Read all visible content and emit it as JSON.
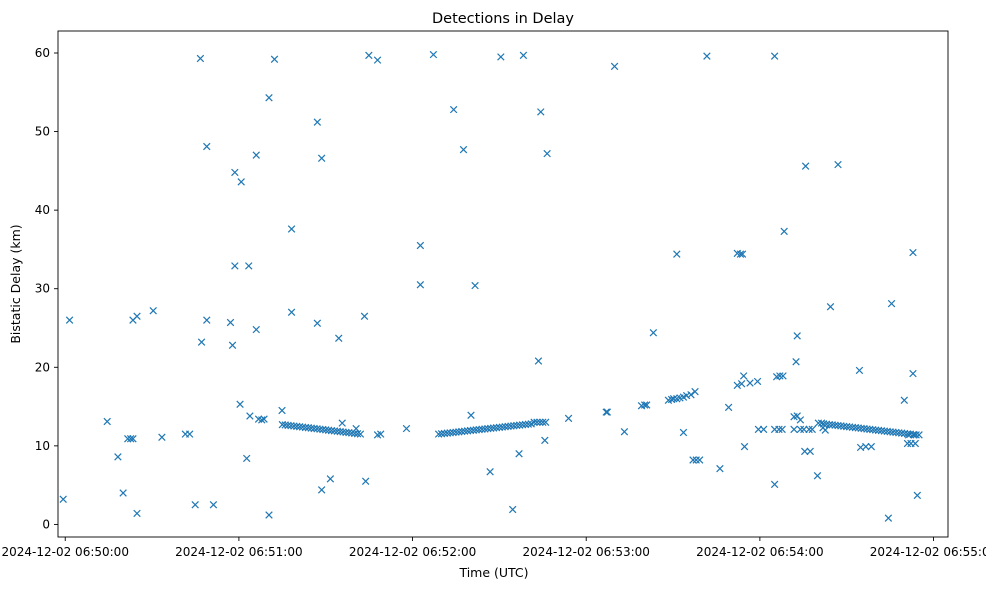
{
  "chart_data": {
    "type": "scatter",
    "title": "Detections in Delay",
    "xlabel": "Time (UTC)",
    "ylabel": "Bistatic Delay (km)",
    "x_units": "seconds after 2024-12-02 06:50:00",
    "xlim": [
      -2.5,
      305
    ],
    "ylim": [
      -1.6,
      62.8
    ],
    "x_ticks": [
      {
        "value": 0,
        "label": "2024-12-02 06:50:00"
      },
      {
        "value": 60,
        "label": "2024-12-02 06:51:00"
      },
      {
        "value": 120,
        "label": "2024-12-02 06:52:00"
      },
      {
        "value": 180,
        "label": "2024-12-02 06:53:00"
      },
      {
        "value": 240,
        "label": "2024-12-02 06:54:00"
      },
      {
        "value": 300,
        "label": "2024-12-02 06:55:00"
      }
    ],
    "y_ticks": [
      {
        "value": 0,
        "label": "0"
      },
      {
        "value": 10,
        "label": "10"
      },
      {
        "value": 20,
        "label": "20"
      },
      {
        "value": 30,
        "label": "30"
      },
      {
        "value": 40,
        "label": "40"
      },
      {
        "value": 50,
        "label": "50"
      },
      {
        "value": 60,
        "label": "60"
      }
    ],
    "grid": false,
    "marker": "x",
    "color": "#1f77b4",
    "points": [
      [
        -0.7,
        3.2
      ],
      [
        1.5,
        26.0
      ],
      [
        14.5,
        13.1
      ],
      [
        18.2,
        8.6
      ],
      [
        20,
        4.0
      ],
      [
        21.6,
        10.9
      ],
      [
        22.6,
        10.9
      ],
      [
        23.4,
        10.9
      ],
      [
        23.4,
        26.0
      ],
      [
        24.8,
        26.5
      ],
      [
        24.8,
        1.4
      ],
      [
        30.4,
        27.2
      ],
      [
        33.4,
        11.1
      ],
      [
        41.5,
        11.5
      ],
      [
        43,
        11.5
      ],
      [
        44.9,
        2.5
      ],
      [
        46.7,
        59.3
      ],
      [
        47.1,
        23.2
      ],
      [
        48.9,
        48.1
      ],
      [
        48.9,
        26.0
      ],
      [
        51.2,
        2.5
      ],
      [
        57.1,
        25.7
      ],
      [
        57.8,
        22.8
      ],
      [
        58.6,
        44.8
      ],
      [
        58.6,
        32.9
      ],
      [
        60.4,
        15.3
      ],
      [
        60.8,
        43.6
      ],
      [
        62.7,
        8.4
      ],
      [
        63.4,
        32.9
      ],
      [
        63.8,
        13.8
      ],
      [
        66,
        47.0
      ],
      [
        66,
        24.8
      ],
      [
        66.8,
        13.4
      ],
      [
        67.9,
        13.3
      ],
      [
        68.7,
        13.4
      ],
      [
        70.4,
        54.3
      ],
      [
        70.4,
        1.2
      ],
      [
        72.3,
        59.2
      ],
      [
        74.9,
        14.5
      ],
      [
        78.2,
        37.6
      ],
      [
        78.2,
        27.0
      ],
      [
        87.1,
        51.2
      ],
      [
        88.6,
        46.6
      ],
      [
        87.1,
        25.6
      ],
      [
        88.6,
        4.4
      ],
      [
        91.6,
        5.8
      ],
      [
        94.5,
        23.7
      ],
      [
        95.7,
        12.9
      ],
      [
        100.5,
        12.2
      ],
      [
        103.4,
        26.5
      ],
      [
        103.8,
        5.5
      ],
      [
        104.9,
        59.7
      ],
      [
        107.9,
        59.1
      ],
      [
        107.9,
        11.4
      ],
      [
        109,
        11.5
      ],
      [
        117.9,
        12.2
      ],
      [
        122.7,
        35.5
      ],
      [
        122.7,
        30.5
      ],
      [
        127.2,
        59.8
      ],
      [
        134.2,
        52.8
      ],
      [
        137.6,
        47.7
      ],
      [
        140.2,
        13.9
      ],
      [
        141.6,
        30.4
      ],
      [
        146.8,
        6.7
      ],
      [
        150.5,
        59.5
      ],
      [
        154.6,
        1.9
      ],
      [
        156.8,
        9.0
      ],
      [
        158.3,
        59.7
      ],
      [
        163.5,
        20.8
      ],
      [
        164.3,
        52.5
      ],
      [
        165.7,
        10.7
      ],
      [
        166.5,
        47.2
      ],
      [
        173.9,
        13.5
      ],
      [
        186.9,
        14.3
      ],
      [
        187.3,
        14.3
      ],
      [
        189.8,
        58.3
      ],
      [
        193.2,
        11.8
      ],
      [
        203.2,
        24.4
      ],
      [
        211.3,
        34.4
      ],
      [
        213.6,
        11.7
      ],
      [
        216.9,
        8.2
      ],
      [
        218,
        8.2
      ],
      [
        219.2,
        8.2
      ],
      [
        221.7,
        59.6
      ],
      [
        226.2,
        7.1
      ],
      [
        229.2,
        14.9
      ],
      [
        232.2,
        34.5
      ],
      [
        233.3,
        34.4
      ],
      [
        234,
        34.4
      ],
      [
        232.2,
        17.7
      ],
      [
        233.7,
        17.9
      ],
      [
        234.4,
        18.9
      ],
      [
        236.6,
        18.0
      ],
      [
        239.2,
        18.2
      ],
      [
        234.7,
        9.9
      ],
      [
        245.1,
        59.6
      ],
      [
        245.1,
        5.1
      ],
      [
        245.8,
        18.8
      ],
      [
        246.9,
        18.9
      ],
      [
        248,
        18.9
      ],
      [
        248.4,
        37.3
      ],
      [
        251.8,
        13.7
      ],
      [
        252.9,
        13.8
      ],
      [
        252.5,
        20.7
      ],
      [
        252.9,
        24.0
      ],
      [
        254,
        13.3
      ],
      [
        255.5,
        9.3
      ],
      [
        257.4,
        9.3
      ],
      [
        255.8,
        45.6
      ],
      [
        259.9,
        6.2
      ],
      [
        264.4,
        27.7
      ],
      [
        267,
        45.8
      ],
      [
        274.4,
        19.6
      ],
      [
        274.8,
        9.8
      ],
      [
        276.6,
        9.9
      ],
      [
        278.5,
        9.9
      ],
      [
        284.4,
        0.8
      ],
      [
        285.5,
        28.1
      ],
      [
        289.9,
        15.8
      ],
      [
        291,
        10.3
      ],
      [
        292.2,
        10.3
      ],
      [
        293.7,
        10.3
      ],
      [
        292.9,
        34.6
      ],
      [
        292.9,
        19.2
      ],
      [
        294.4,
        3.7
      ],
      [
        291.4,
        11.4
      ],
      [
        293.3,
        11.4
      ],
      [
        295,
        11.4
      ],
      [
        239.5,
        12.1
      ],
      [
        241.3,
        12.1
      ],
      [
        245.1,
        12.1
      ],
      [
        246.6,
        12.1
      ],
      [
        247.7,
        12.1
      ],
      [
        251.8,
        12.1
      ],
      [
        254.0,
        12.1
      ],
      [
        255.2,
        12.1
      ],
      [
        257.0,
        12.1
      ],
      [
        258.1,
        12.1
      ],
      [
        260.2,
        12.9
      ],
      [
        261.3,
        12.9
      ],
      [
        261.8,
        12.3
      ],
      [
        262.6,
        12.0
      ],
      [
        199.1,
        15.1
      ],
      [
        200.2,
        15.2
      ],
      [
        200.9,
        15.2
      ],
      [
        208.4,
        15.8
      ],
      [
        209.5,
        15.9
      ],
      [
        210.2,
        16.0
      ],
      [
        211.3,
        16.0
      ],
      [
        212.4,
        16.1
      ],
      [
        213.6,
        16.2
      ],
      [
        214.7,
        16.4
      ],
      [
        216.2,
        16.5
      ],
      [
        217.6,
        16.9
      ],
      [
        75,
        12.7
      ],
      [
        76,
        12.66
      ],
      [
        77,
        12.61
      ],
      [
        78,
        12.57
      ],
      [
        79,
        12.52
      ],
      [
        80,
        12.48
      ],
      [
        81,
        12.43
      ],
      [
        82,
        12.39
      ],
      [
        83,
        12.34
      ],
      [
        84,
        12.3
      ],
      [
        85,
        12.26
      ],
      [
        86,
        12.21
      ],
      [
        87,
        12.17
      ],
      [
        88,
        12.12
      ],
      [
        89,
        12.08
      ],
      [
        90,
        12.03
      ],
      [
        91,
        11.99
      ],
      [
        92,
        11.94
      ],
      [
        93,
        11.9
      ],
      [
        94,
        11.86
      ],
      [
        95,
        11.81
      ],
      [
        96,
        11.77
      ],
      [
        97,
        11.72
      ],
      [
        98,
        11.68
      ],
      [
        99,
        11.63
      ],
      [
        100,
        11.59
      ],
      [
        101,
        11.54
      ],
      [
        102,
        11.5
      ],
      [
        129,
        11.5
      ],
      [
        130,
        11.54
      ],
      [
        131,
        11.58
      ],
      [
        132,
        11.62
      ],
      [
        133,
        11.66
      ],
      [
        134,
        11.7
      ],
      [
        135,
        11.74
      ],
      [
        136,
        11.78
      ],
      [
        137,
        11.83
      ],
      [
        138,
        11.87
      ],
      [
        139,
        11.91
      ],
      [
        140,
        11.95
      ],
      [
        141,
        11.99
      ],
      [
        142,
        12.03
      ],
      [
        143,
        12.07
      ],
      [
        144,
        12.11
      ],
      [
        145,
        12.15
      ],
      [
        146,
        12.19
      ],
      [
        147,
        12.23
      ],
      [
        148,
        12.27
      ],
      [
        149,
        12.31
      ],
      [
        150,
        12.35
      ],
      [
        151,
        12.39
      ],
      [
        152,
        12.43
      ],
      [
        153,
        12.48
      ],
      [
        154,
        12.52
      ],
      [
        155,
        12.56
      ],
      [
        156,
        12.6
      ],
      [
        157,
        12.64
      ],
      [
        158,
        12.68
      ],
      [
        159,
        12.72
      ],
      [
        160,
        12.76
      ],
      [
        161,
        12.8
      ],
      [
        162,
        13.0
      ],
      [
        163,
        13.0
      ],
      [
        164,
        13.0
      ],
      [
        165,
        13.0
      ],
      [
        166,
        13.0
      ],
      [
        262,
        12.8
      ],
      [
        263,
        12.76
      ],
      [
        264,
        12.71
      ],
      [
        265,
        12.67
      ],
      [
        266,
        12.63
      ],
      [
        267,
        12.58
      ],
      [
        268,
        12.54
      ],
      [
        269,
        12.49
      ],
      [
        270,
        12.45
      ],
      [
        271,
        12.41
      ],
      [
        272,
        12.36
      ],
      [
        273,
        12.32
      ],
      [
        274,
        12.28
      ],
      [
        275,
        12.23
      ],
      [
        276,
        12.19
      ],
      [
        277,
        12.14
      ],
      [
        278,
        12.1
      ],
      [
        279,
        12.06
      ],
      [
        280,
        12.01
      ],
      [
        281,
        11.97
      ],
      [
        282,
        11.93
      ],
      [
        283,
        11.88
      ],
      [
        284,
        11.84
      ],
      [
        285,
        11.79
      ],
      [
        286,
        11.75
      ],
      [
        287,
        11.71
      ],
      [
        288,
        11.66
      ],
      [
        289,
        11.62
      ],
      [
        290,
        11.58
      ],
      [
        291,
        11.53
      ],
      [
        292,
        11.49
      ],
      [
        293,
        11.44
      ],
      [
        294,
        11.4
      ]
    ]
  }
}
